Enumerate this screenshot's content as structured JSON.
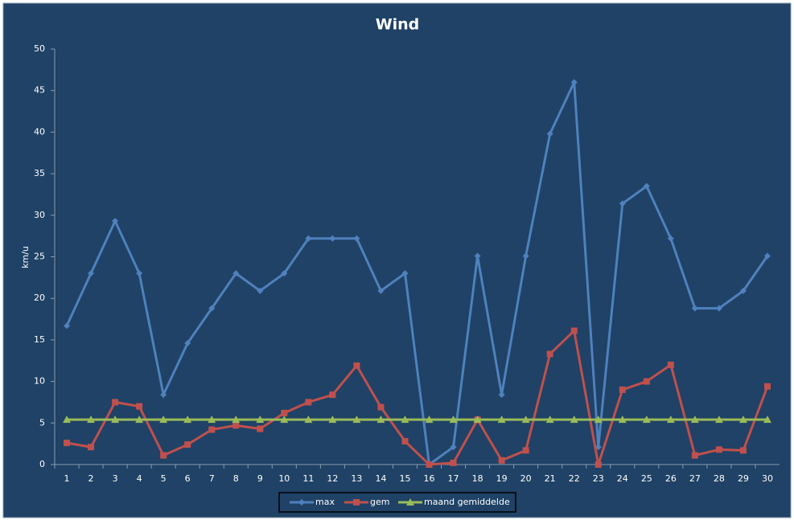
{
  "chart_data": {
    "type": "line",
    "title": "Wind",
    "y_label": "km/u",
    "categories": [
      "1",
      "2",
      "3",
      "4",
      "5",
      "6",
      "7",
      "8",
      "9",
      "10",
      "11",
      "12",
      "13",
      "14",
      "15",
      "16",
      "17",
      "18",
      "19",
      "20",
      "21",
      "22",
      "23",
      "24",
      "25",
      "26",
      "27",
      "28",
      "29",
      "30"
    ],
    "series": [
      {
        "name": "max",
        "color": "#4f81bd",
        "marker": "diamond",
        "values": [
          16.7,
          23,
          29.3,
          23,
          8.4,
          14.6,
          18.8,
          23,
          20.9,
          23,
          27.2,
          27.2,
          27.2,
          20.9,
          23,
          0,
          2.1,
          25.1,
          8.4,
          25.1,
          39.8,
          46,
          2.1,
          31.4,
          33.5,
          27.2,
          18.8,
          18.8,
          20.9,
          25.1
        ]
      },
      {
        "name": "gem",
        "color": "#c0504d",
        "marker": "square",
        "values": [
          2.6,
          2.1,
          7.5,
          7,
          1.1,
          2.4,
          4.2,
          4.7,
          4.3,
          6.2,
          7.5,
          8.4,
          11.9,
          6.9,
          2.8,
          0,
          0.2,
          5.4,
          0.5,
          1.7,
          13.3,
          16.1,
          0,
          9,
          10,
          12,
          1.1,
          1.8,
          1.7,
          9.4
        ]
      },
      {
        "name": "maand gemiddelde",
        "color": "#9bbb59",
        "marker": "triangle",
        "values": [
          5.4,
          5.4,
          5.4,
          5.4,
          5.4,
          5.4,
          5.4,
          5.4,
          5.4,
          5.4,
          5.4,
          5.4,
          5.4,
          5.4,
          5.4,
          5.4,
          5.4,
          5.4,
          5.4,
          5.4,
          5.4,
          5.4,
          5.4,
          5.4,
          5.4,
          5.4,
          5.4,
          5.4,
          5.4,
          5.4
        ]
      }
    ],
    "ylim": [
      0,
      50
    ],
    "yticks": [
      0,
      5,
      10,
      15,
      20,
      25,
      30,
      35,
      40,
      45,
      50
    ],
    "grid": false,
    "legend": "bottom"
  }
}
